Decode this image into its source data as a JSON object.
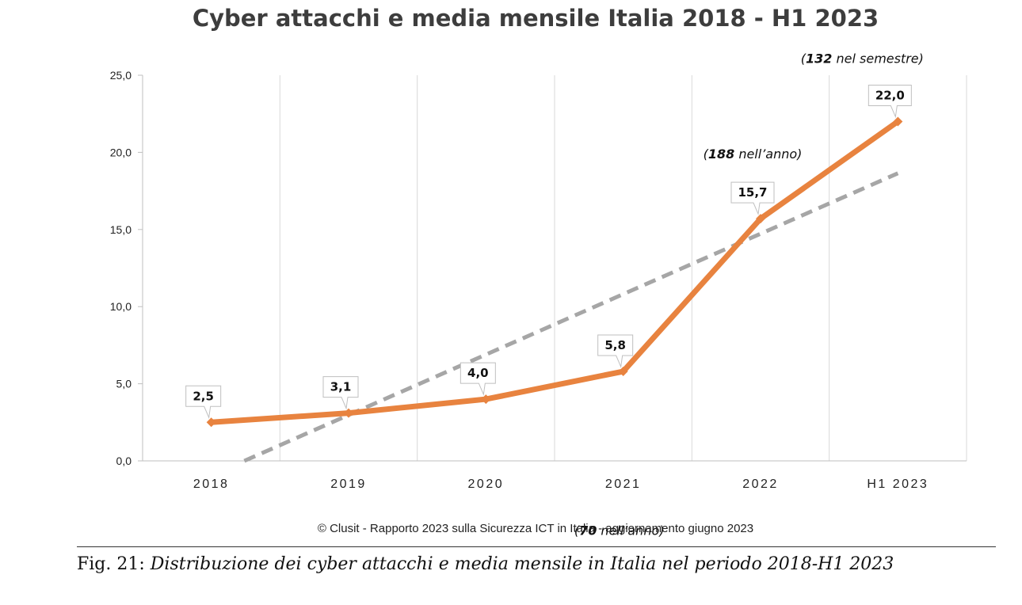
{
  "chart_data": {
    "type": "line",
    "title": "Cyber attacchi e media mensile Italia 2018 - H1 2023",
    "categories": [
      "2018",
      "2019",
      "2020",
      "2021",
      "2022",
      "H1 2023"
    ],
    "series": [
      {
        "values": [
          2.5,
          3.1,
          4.0,
          5.8,
          15.7,
          22.0
        ],
        "color": "#e8833f"
      }
    ],
    "data_labels": [
      "2,5",
      "3,1",
      "4,0",
      "5,8",
      "15,7",
      "22,0"
    ],
    "trendline": {
      "type": "linear",
      "style": "dashed",
      "color": "#a6a6a6"
    },
    "ylim": [
      0,
      25
    ],
    "y_ticks": [
      0,
      5,
      10,
      15,
      20,
      25
    ],
    "y_tick_labels": [
      "0,0",
      "5,0",
      "10,0",
      "15,0",
      "20,0",
      "25,0"
    ],
    "grid": "vertical",
    "annotations": [
      {
        "bold": "70",
        "rest": " nell’anno)",
        "category": "2021"
      },
      {
        "bold": "188",
        "rest": " nell’anno)",
        "category": "2022"
      },
      {
        "bold": "132",
        "rest": " nel semestre)",
        "category": "H1 2023"
      }
    ]
  },
  "copyright": "© Clusit - Rapporto 2023 sulla Sicurezza ICT in Italia - aggiornamento giugno 2023",
  "caption": {
    "prefix": "Fig. 21:",
    "text": "Distribuzione dei cyber attacchi e media mensile in Italia nel periodo 2018-H1 2023"
  }
}
